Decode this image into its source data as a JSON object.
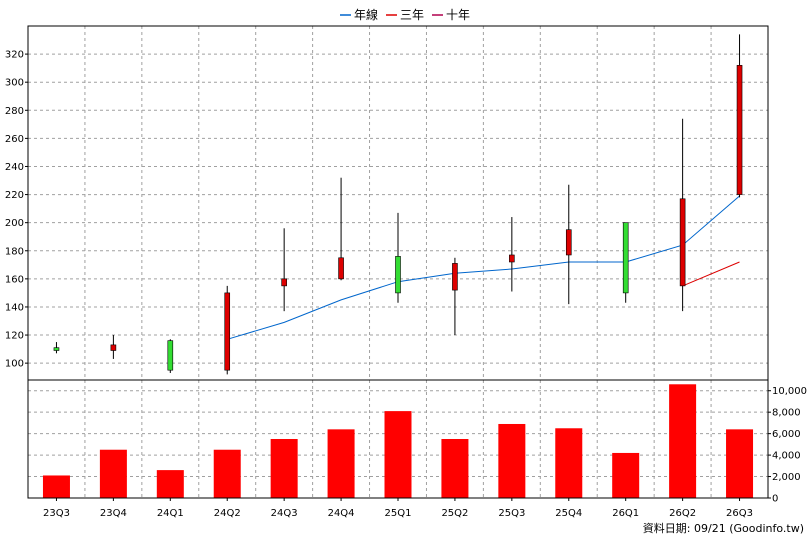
{
  "legend": [
    {
      "label": "年線",
      "color": "#0066cc"
    },
    {
      "label": "三年",
      "color": "#dd0000"
    },
    {
      "label": "十年",
      "color": "#b0004e"
    }
  ],
  "credit": "資料日期: 09/21 (Goodinfo.tw)",
  "colors": {
    "up": "#dd0000",
    "down": "#33dd33",
    "volume": "#ff0000",
    "grid": "#a0a0a0",
    "wick": "#000000"
  },
  "chart_data": [
    {
      "type": "candlestick",
      "title": "",
      "categories": [
        "23Q3",
        "23Q4",
        "24Q1",
        "24Q2",
        "24Q3",
        "24Q4",
        "25Q1",
        "25Q2",
        "25Q3",
        "25Q4",
        "26Q1",
        "26Q2",
        "26Q3"
      ],
      "open": [
        111,
        109,
        116,
        95,
        155,
        160,
        176,
        152,
        172,
        177,
        200,
        155,
        220
      ],
      "close": [
        109,
        113,
        95,
        150,
        160,
        175,
        150,
        171,
        177,
        195,
        150,
        217,
        312
      ],
      "high": [
        115,
        120,
        117,
        155,
        196,
        232,
        207,
        175,
        204,
        227,
        200,
        274,
        334
      ],
      "low": [
        107,
        103,
        93,
        92,
        137,
        159,
        143,
        120,
        151,
        142,
        143,
        137,
        218
      ],
      "y_ticks": [
        100,
        120,
        140,
        160,
        180,
        200,
        220,
        240,
        260,
        280,
        300,
        320
      ],
      "ylim": [
        88,
        340
      ],
      "grid": true,
      "series": [
        {
          "name": "年線",
          "x": [
            "24Q2",
            "24Q3",
            "24Q4",
            "25Q1",
            "25Q2",
            "25Q3",
            "25Q4",
            "26Q1",
            "26Q2",
            "26Q3"
          ],
          "values": [
            117,
            129,
            145,
            158,
            164,
            167,
            172,
            172,
            184,
            219
          ]
        },
        {
          "name": "三年",
          "x": [
            "26Q2",
            "26Q3"
          ],
          "values": [
            155,
            172
          ]
        }
      ]
    },
    {
      "type": "bar",
      "title": "",
      "categories": [
        "23Q3",
        "23Q4",
        "24Q1",
        "24Q2",
        "24Q3",
        "24Q4",
        "25Q1",
        "25Q2",
        "25Q3",
        "25Q4",
        "26Q1",
        "26Q2",
        "26Q3"
      ],
      "values": [
        2100,
        4500,
        2600,
        4500,
        5500,
        6400,
        8100,
        5500,
        6900,
        6500,
        4200,
        10600,
        6400
      ],
      "y_ticks": [
        "0",
        "2,000",
        "4,000",
        "6,000",
        "8,000",
        "10,000"
      ],
      "ylim": [
        0,
        11000
      ],
      "grid": true
    }
  ]
}
